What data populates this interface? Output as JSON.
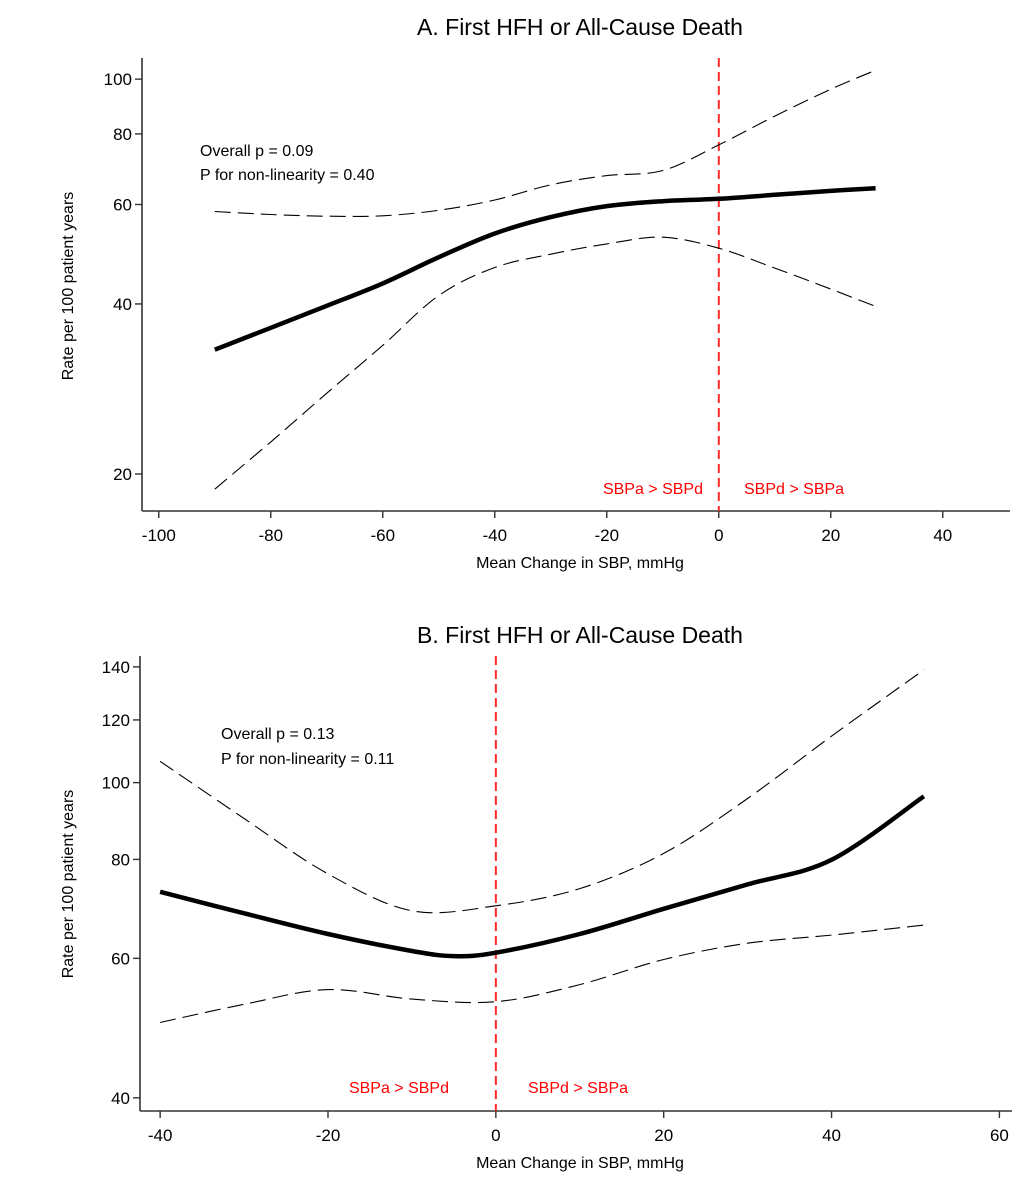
{
  "chart_data": [
    {
      "type": "line",
      "panel": "A",
      "title": "A.  First HFH or All-Cause Death",
      "xlabel": "Mean Change in SBP, mmHg",
      "ylabel": "Rate per 100 patient years",
      "xlim": [
        -103,
        52
      ],
      "ylim": [
        17.2,
        109
      ],
      "yscale": "log",
      "xticks": [
        -100,
        -80,
        -60,
        -40,
        -20,
        0,
        20,
        40
      ],
      "yticks": [
        20,
        40,
        60,
        80,
        100
      ],
      "grid": false,
      "reference_line": {
        "x": 0,
        "color": "#ff2a2a",
        "style": "dashed"
      },
      "annotations": [
        "Overall p = 0.09",
        "P for non-linearity = 0.40"
      ],
      "region_labels": {
        "left": "SBPa > SBPd",
        "right": "SBPd > SBPa"
      },
      "series": [
        {
          "name": "Estimate",
          "style": "solid",
          "x": [
            -90,
            -80,
            -70,
            -60,
            -50,
            -40,
            -30,
            -20,
            -10,
            0,
            10,
            20,
            28
          ],
          "y": [
            33.2,
            36.3,
            39.7,
            43.5,
            48.4,
            53.3,
            57.0,
            59.6,
            60.8,
            61.4,
            62.4,
            63.4,
            64.1
          ]
        },
        {
          "name": "Upper 95% CI",
          "style": "dashed",
          "x": [
            -90,
            -80,
            -70,
            -60,
            -50,
            -40,
            -30,
            -20,
            -10,
            0,
            10,
            20,
            28
          ],
          "y": [
            58.3,
            57.6,
            57.2,
            57.3,
            58.6,
            61.1,
            65.0,
            67.5,
            68.9,
            76.5,
            86.0,
            96.0,
            103.7
          ]
        },
        {
          "name": "Lower 95% CI",
          "style": "dashed",
          "x": [
            -90,
            -80,
            -70,
            -60,
            -50,
            -40,
            -30,
            -20,
            -10,
            0,
            10,
            20,
            28
          ],
          "y": [
            18.8,
            22.8,
            27.8,
            33.8,
            41.4,
            46.4,
            49.0,
            51.1,
            52.5,
            50.2,
            46.3,
            42.5,
            39.6
          ]
        }
      ]
    },
    {
      "type": "line",
      "panel": "B",
      "title": "B.  First HFH or All-Cause Death",
      "xlabel": "Mean Change in SBP, mmHg",
      "ylabel": "Rate per 100 patient years",
      "xlim": [
        -42.4,
        61.5
      ],
      "ylim": [
        38.5,
        144.5
      ],
      "yscale": "log",
      "xticks": [
        -40,
        -20,
        0,
        20,
        40,
        60
      ],
      "yticks": [
        40,
        60,
        80,
        100,
        120,
        140
      ],
      "grid": false,
      "reference_line": {
        "x": 0,
        "color": "#ff2a2a",
        "style": "dashed"
      },
      "annotations": [
        "Overall p = 0.13",
        "P for non-linearity = 0.11"
      ],
      "region_labels": {
        "left": "SBPa > SBPd",
        "right": "SBPd > SBPa"
      },
      "series": [
        {
          "name": "Estimate",
          "style": "solid",
          "x": [
            -40,
            -30,
            -20,
            -10,
            -5,
            0,
            10,
            20,
            30,
            40,
            51
          ],
          "y": [
            72.8,
            68.4,
            64.4,
            61.3,
            60.4,
            61.0,
            64.4,
            69.3,
            74.4,
            79.9,
            96.1
          ]
        },
        {
          "name": "Upper 95% CI",
          "style": "dashed",
          "x": [
            -40,
            -30,
            -20,
            -10,
            0,
            10,
            20,
            30,
            40,
            51
          ],
          "y": [
            106.4,
            90.1,
            76.7,
            68.9,
            69.9,
            73.5,
            81.4,
            95.5,
            114.5,
            138.8
          ]
        },
        {
          "name": "Lower 95% CI",
          "style": "dashed",
          "x": [
            -40,
            -30,
            -20,
            -10,
            0,
            10,
            20,
            30,
            40,
            51
          ],
          "y": [
            49.8,
            52.5,
            54.8,
            53.3,
            52.9,
            55.6,
            59.8,
            62.7,
            64.2,
            66.1
          ]
        }
      ]
    }
  ]
}
